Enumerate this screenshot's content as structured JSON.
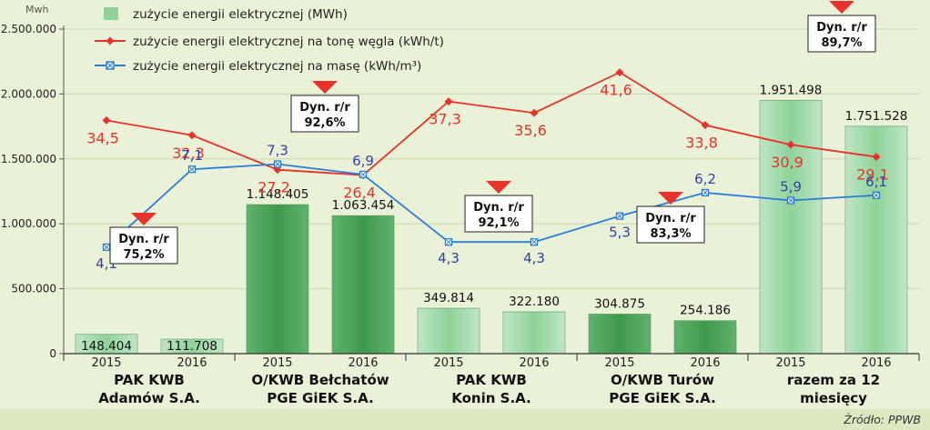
{
  "chart_data": {
    "type": "bar",
    "ylabel": "Mwh",
    "ylim": [
      0,
      2500000
    ],
    "yticks": [
      "0",
      "500.000",
      "1.000.000",
      "1.500.000",
      "2.000.000",
      "2.500.000"
    ],
    "ytick_values": [
      0,
      500000,
      1000000,
      1500000,
      2000000,
      2500000
    ],
    "grid": true,
    "legend_position": "top-left",
    "categories": [
      "2015",
      "2016",
      "2015",
      "2016",
      "2015",
      "2016",
      "2015",
      "2016",
      "2015",
      "2016"
    ],
    "groups": [
      {
        "line1": "PAK KWB",
        "line2": "Adamów S.A."
      },
      {
        "line1": "O/KWB Bełchatów",
        "line2": "PGE GiEK S.A."
      },
      {
        "line1": "PAK KWB",
        "line2": "Konin S.A."
      },
      {
        "line1": "O/KWB Turów",
        "line2": "PGE GiEK S.A."
      },
      {
        "line1": "razem za 12",
        "line2": "miesięcy"
      }
    ],
    "series": [
      {
        "name": "zużycie energii elektrycznej (MWh)",
        "type": "bar",
        "color": "#8fd39a",
        "values": [
          148404,
          111708,
          1148405,
          1063454,
          349814,
          322180,
          304875,
          254186,
          1951498,
          1751528
        ],
        "labels": [
          "148.404",
          "111.708",
          "1.148.405",
          "1.063.454",
          "349.814",
          "322.180",
          "304.875",
          "254.186",
          "1.951.498",
          "1.751.528"
        ]
      },
      {
        "name": "zużycie energii elektrycznej na tonę węgla (kWh/t)",
        "type": "line",
        "color": "#e8322a",
        "values": [
          34.5,
          32.3,
          27.2,
          26.4,
          37.3,
          35.6,
          41.6,
          33.8,
          30.9,
          29.1
        ],
        "labels": [
          "34,5",
          "32,3",
          "27,2",
          "26,4",
          "37,3",
          "35,6",
          "41,6",
          "33,8",
          "30,9",
          "29,1"
        ]
      },
      {
        "name": "zużycie energii elektrycznej na masę (kWh/m³)",
        "type": "line",
        "color": "#2a7fd4",
        "values": [
          4.1,
          7.1,
          7.3,
          6.9,
          4.3,
          4.3,
          5.3,
          6.2,
          5.9,
          6.1
        ],
        "labels": [
          "4,1",
          "7,1",
          "7,3",
          "6,9",
          "4,3",
          "4,3",
          "5,3",
          "6,2",
          "5,9",
          "6,1"
        ]
      }
    ],
    "annotations": [
      {
        "title": "Dyn. r/r",
        "value": "75,2%"
      },
      {
        "title": "Dyn. r/r",
        "value": "92,6%"
      },
      {
        "title": "Dyn. r/r",
        "value": "92,1%"
      },
      {
        "title": "Dyn. r/r",
        "value": "83,3%"
      },
      {
        "title": "Dyn. r/r",
        "value": "89,7%"
      }
    ],
    "source": "Źródło: PPWB"
  }
}
